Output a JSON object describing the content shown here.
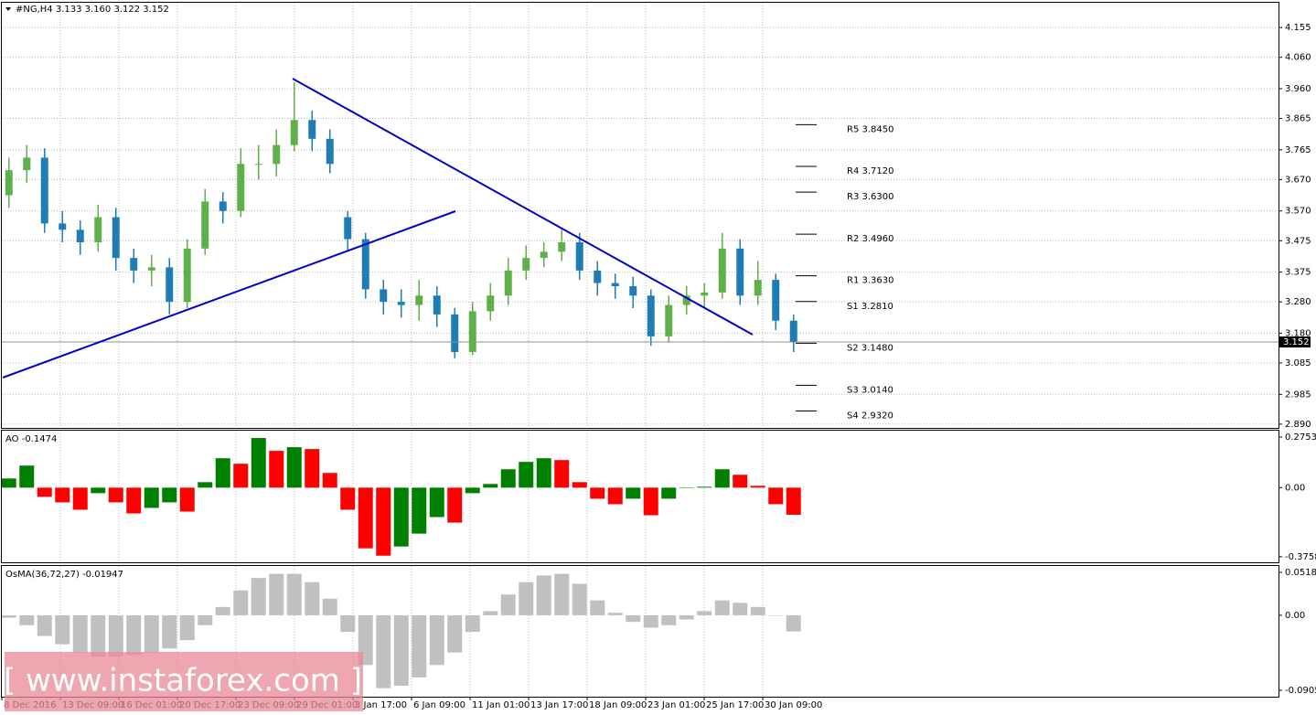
{
  "chart_data": [
    {
      "type": "candlestick",
      "title": "#NG,H4  3.133 3.160 3.122 3.152",
      "x_labels": [
        "8 Dec 2016",
        "13 Dec 09:00",
        "16 Dec 01:00",
        "20 Dec 17:00",
        "23 Dec 09:00",
        "29 Dec 01:00",
        "3 Jan 17:00",
        "6 Jan 09:00",
        "11 Jan 01:00",
        "13 Jan 17:00",
        "18 Jan 09:00",
        "23 Jan 01:00",
        "25 Jan 17:00",
        "30 Jan 09:00"
      ],
      "open": [
        3.62,
        3.7,
        3.74,
        3.53,
        3.51,
        3.47,
        3.55,
        3.42,
        3.38,
        3.39,
        3.28,
        3.45,
        3.6,
        3.57,
        3.72,
        3.72,
        3.78,
        3.86,
        3.8,
        3.55,
        3.48,
        3.32,
        3.28,
        3.27,
        3.3,
        3.24,
        3.12,
        3.25,
        3.3,
        3.38,
        3.42,
        3.44,
        3.47,
        3.38,
        3.34,
        3.33,
        3.3,
        3.17,
        3.27,
        3.3,
        3.31,
        3.45,
        3.3,
        3.35,
        3.22
      ],
      "high": [
        3.74,
        3.78,
        3.77,
        3.57,
        3.54,
        3.59,
        3.58,
        3.45,
        3.43,
        3.42,
        3.48,
        3.64,
        3.63,
        3.77,
        3.78,
        3.83,
        3.98,
        3.89,
        3.83,
        3.57,
        3.5,
        3.35,
        3.32,
        3.35,
        3.33,
        3.26,
        3.28,
        3.34,
        3.42,
        3.46,
        3.47,
        3.51,
        3.5,
        3.41,
        3.37,
        3.36,
        3.32,
        3.3,
        3.33,
        3.34,
        3.5,
        3.48,
        3.41,
        3.37,
        3.24
      ],
      "low": [
        3.58,
        3.66,
        3.5,
        3.47,
        3.43,
        3.44,
        3.38,
        3.34,
        3.33,
        3.24,
        3.26,
        3.43,
        3.53,
        3.55,
        3.67,
        3.68,
        3.76,
        3.76,
        3.69,
        3.44,
        3.29,
        3.24,
        3.23,
        3.22,
        3.2,
        3.1,
        3.11,
        3.22,
        3.27,
        3.35,
        3.39,
        3.41,
        3.35,
        3.3,
        3.29,
        3.26,
        3.14,
        3.15,
        3.24,
        3.26,
        3.29,
        3.27,
        3.27,
        3.19,
        3.12
      ],
      "close": [
        3.7,
        3.74,
        3.53,
        3.51,
        3.47,
        3.55,
        3.42,
        3.38,
        3.39,
        3.28,
        3.45,
        3.6,
        3.57,
        3.72,
        3.72,
        3.78,
        3.86,
        3.8,
        3.72,
        3.48,
        3.32,
        3.28,
        3.27,
        3.3,
        3.24,
        3.12,
        3.25,
        3.3,
        3.38,
        3.42,
        3.44,
        3.47,
        3.38,
        3.34,
        3.33,
        3.3,
        3.17,
        3.27,
        3.3,
        3.31,
        3.45,
        3.3,
        3.35,
        3.22,
        3.152
      ],
      "up_color": "#5fb04a",
      "down_color": "#1f7db5",
      "ylim": [
        2.878,
        4.234
      ],
      "yticks": [
        4.155,
        {
          "value": 4.06,
          "label": "4.060"
        },
        {
          "value": 3.96,
          "label": "3.960"
        },
        3.865,
        3.765,
        {
          "value": 3.67,
          "label": "3.670"
        },
        {
          "value": 3.57,
          "label": "3.570"
        },
        3.475,
        3.375,
        {
          "value": 3.28,
          "label": "3.280"
        },
        {
          "value": 3.18,
          "label": "3.180"
        },
        3.085,
        2.985,
        {
          "value": 2.89,
          "label": "2.890"
        }
      ],
      "grid": true,
      "levels": [
        {
          "label": "R5 3.8450",
          "value": 3.845
        },
        {
          "label": "R4 3.7120",
          "value": 3.712
        },
        {
          "label": "R3 3.6300",
          "value": 3.63
        },
        {
          "label": "R2 3.4960",
          "value": 3.496
        },
        {
          "label": "R1 3.3630",
          "value": 3.363
        },
        {
          "label": "S1 3.2810",
          "value": 3.281
        },
        {
          "label": "S2 3.1480",
          "value": 3.148
        },
        {
          "label": "S3 3.0140",
          "value": 3.014
        },
        {
          "label": "S4 2.9320",
          "value": 2.932
        }
      ],
      "last_price": 3.152
    },
    {
      "type": "bar",
      "title": "AO -0.1474",
      "values": [
        0.05,
        0.12,
        -0.05,
        -0.08,
        -0.12,
        -0.03,
        -0.08,
        -0.14,
        -0.11,
        -0.08,
        -0.13,
        0.03,
        0.16,
        0.13,
        0.27,
        0.2,
        0.22,
        0.21,
        0.08,
        -0.12,
        -0.33,
        -0.37,
        -0.32,
        -0.25,
        -0.16,
        -0.19,
        -0.03,
        0.02,
        0.1,
        0.14,
        0.16,
        0.15,
        0.03,
        -0.06,
        -0.09,
        -0.06,
        -0.15,
        -0.06,
        0.0,
        0.005,
        0.1,
        0.07,
        0.01,
        -0.09,
        -0.1474
      ],
      "up_color": "#008000",
      "down_color": "#ff0000",
      "ylim": [
        -0.406,
        0.31
      ],
      "yticks": [
        0.2753,
        {
          "value": 0,
          "label": "0.00"
        },
        -0.3758
      ]
    },
    {
      "type": "bar",
      "title": "OsMA(36,72,27) -0.01947",
      "values": [
        -0.003,
        -0.012,
        -0.025,
        -0.035,
        -0.045,
        -0.05,
        -0.05,
        -0.048,
        -0.045,
        -0.04,
        -0.03,
        -0.012,
        0.01,
        0.03,
        0.045,
        0.05,
        0.05,
        0.04,
        0.02,
        -0.02,
        -0.06,
        -0.088,
        -0.085,
        -0.075,
        -0.06,
        -0.045,
        -0.02,
        0.005,
        0.025,
        0.04,
        0.048,
        0.05,
        0.038,
        0.018,
        0.003,
        -0.008,
        -0.015,
        -0.012,
        -0.005,
        0.005,
        0.018,
        0.015,
        0.01,
        0.0,
        -0.01947
      ],
      "color": "#c0c0c0",
      "ylim": [
        -0.0983,
        0.0595
      ],
      "yticks": [
        0.05182,
        {
          "value": 0,
          "label": "0.00"
        },
        -0.09052
      ]
    }
  ],
  "watermark": "[ www.instaforex.com ]"
}
